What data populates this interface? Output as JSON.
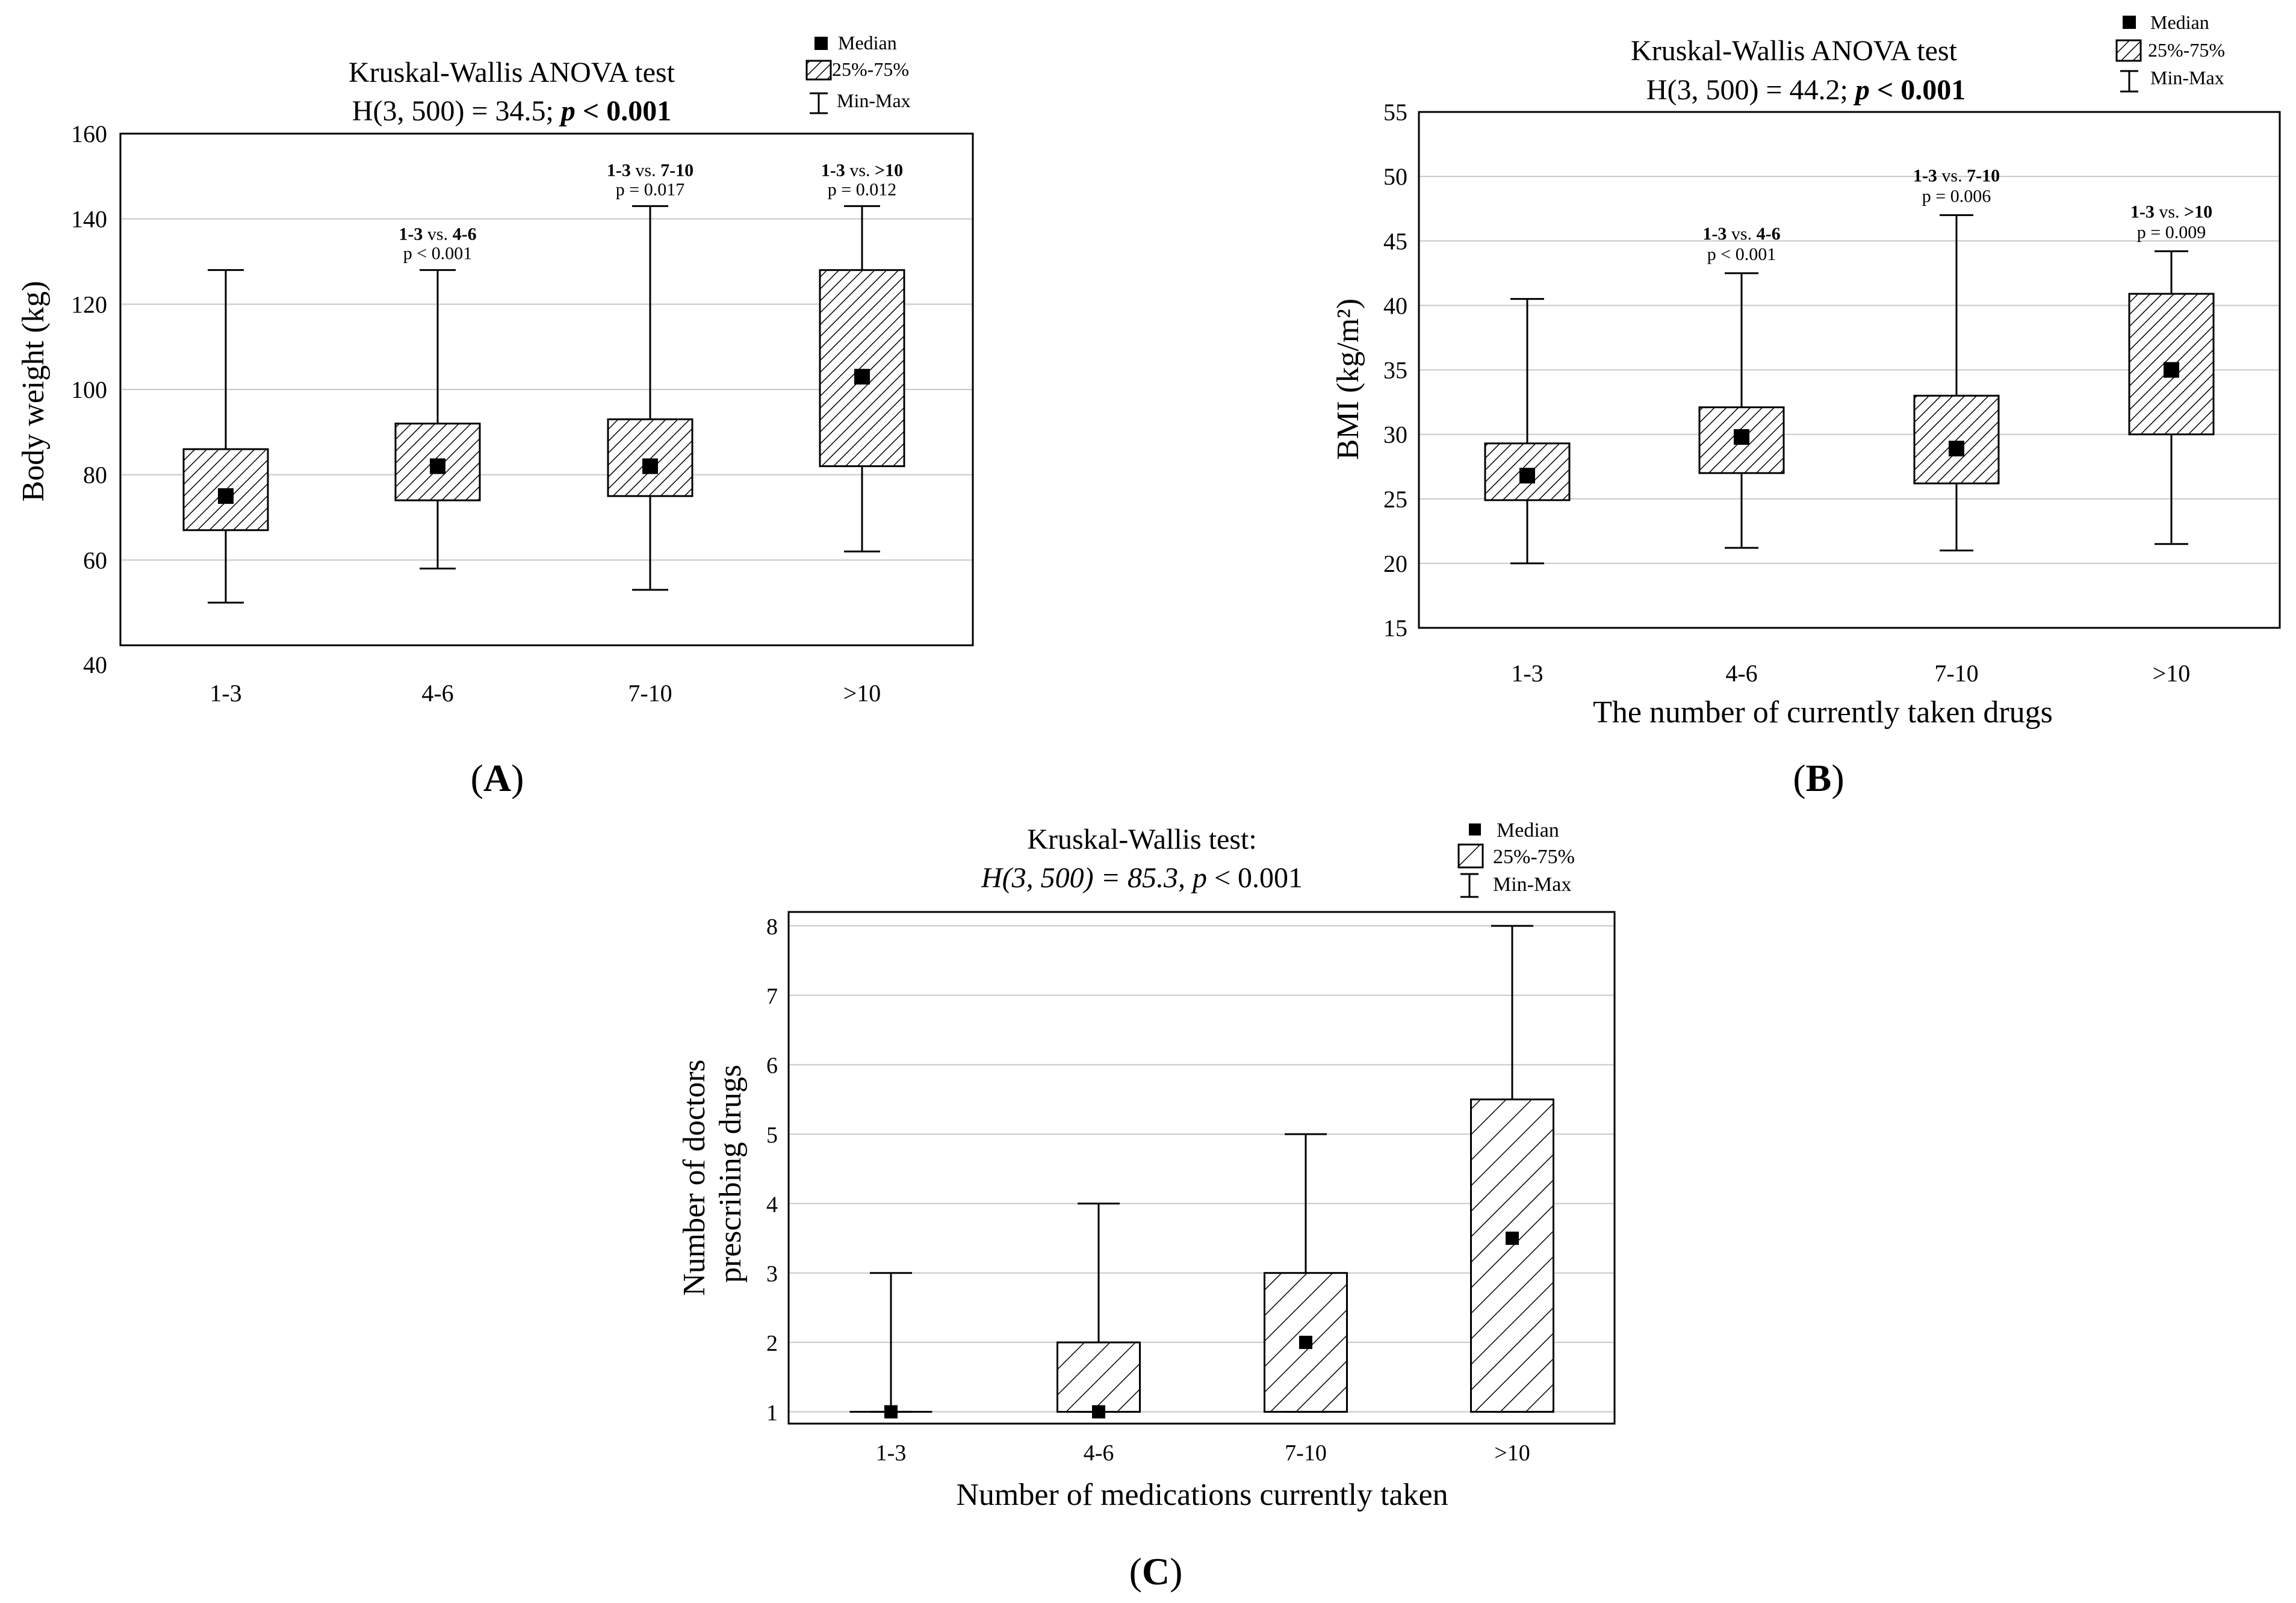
{
  "figure": {
    "panels": [
      {
        "id": "A",
        "panel_label": "(A)",
        "title_line1": "Kruskal-Wallis ANOVA test",
        "title_line2": "H(3, 500) = 34.5;",
        "title_p_label": "p",
        "title_p_value": "< 0.001",
        "legend": {
          "median": "Median",
          "iqr": "25%-75%",
          "range": "Min-Max"
        }
      },
      {
        "id": "B",
        "panel_label": "(B)",
        "title_line1": "Kruskal-Wallis ANOVA test",
        "title_line2": "H(3, 500) = 44.2;",
        "title_p_label": "p",
        "title_p_value": "< 0.001",
        "legend": {
          "median": "Median",
          "iqr": "25%-75%",
          "range": "Min-Max"
        }
      },
      {
        "id": "C",
        "panel_label": "(C)",
        "title_line1": "Kruskal-Wallis test:",
        "title_line2": "H(3, 500) = 85.3,",
        "title_p_label": "p",
        "title_p_value": "< 0.001",
        "legend": {
          "median": "Median",
          "iqr": "25%-75%",
          "range": "Min-Max"
        }
      }
    ]
  },
  "chart_data": [
    {
      "type": "box",
      "panel": "A",
      "categories": [
        "1-3",
        "4-6",
        "7-10",
        ">10"
      ],
      "xlabel": "",
      "ylabel": "Body weight (kg)",
      "ylim": [
        40,
        160
      ],
      "yticks": [
        40,
        60,
        80,
        100,
        120,
        140,
        160
      ],
      "series": [
        {
          "category": "1-3",
          "min": 50,
          "q1": 67,
          "median": 75,
          "q3": 86,
          "max": 128
        },
        {
          "category": "4-6",
          "min": 58,
          "q1": 74,
          "median": 82,
          "q3": 92,
          "max": 128
        },
        {
          "category": "7-10",
          "min": 53,
          "q1": 75,
          "median": 82,
          "q3": 93,
          "max": 143
        },
        {
          "category": ">10",
          "min": 62,
          "q1": 82,
          "median": 103,
          "q3": 128,
          "max": 143
        }
      ],
      "annotations": [
        {
          "category": "4-6",
          "line1_bold_a": "1-3",
          "line1_mid": "vs.",
          "line1_bold_b": "4-6",
          "line2": "p < 0.001"
        },
        {
          "category": "7-10",
          "line1_bold_a": "1-3",
          "line1_mid": "vs.",
          "line1_bold_b": "7-10",
          "line2": "p = 0.017"
        },
        {
          "category": ">10",
          "line1_bold_a": "1-3",
          "line1_mid": "vs.",
          "line1_bold_b": ">10",
          "line2": "p = 0.012"
        }
      ]
    },
    {
      "type": "box",
      "panel": "B",
      "categories": [
        "1-3",
        "4-6",
        "7-10",
        ">10"
      ],
      "xlabel": "The number of currently taken drugs",
      "ylabel": "BMI (kg/m²)",
      "ylim": [
        15,
        55
      ],
      "yticks": [
        15,
        20,
        25,
        30,
        35,
        40,
        45,
        50,
        55
      ],
      "series": [
        {
          "category": "1-3",
          "min": 20.0,
          "q1": 24.9,
          "median": 26.8,
          "q3": 29.3,
          "max": 40.5
        },
        {
          "category": "4-6",
          "min": 21.2,
          "q1": 27.0,
          "median": 29.8,
          "q3": 32.1,
          "max": 42.5
        },
        {
          "category": "7-10",
          "min": 21.0,
          "q1": 26.2,
          "median": 28.9,
          "q3": 33.0,
          "max": 47.0
        },
        {
          "category": ">10",
          "min": 21.5,
          "q1": 30.0,
          "median": 35.0,
          "q3": 40.9,
          "max": 44.2
        }
      ],
      "annotations": [
        {
          "category": "4-6",
          "line1_bold_a": "1-3",
          "line1_mid": "vs.",
          "line1_bold_b": "4-6",
          "line2": "p < 0.001"
        },
        {
          "category": "7-10",
          "line1_bold_a": "1-3",
          "line1_mid": "vs.",
          "line1_bold_b": "7-10",
          "line2": "p = 0.006"
        },
        {
          "category": ">10",
          "line1_bold_a": "1-3",
          "line1_mid": "vs.",
          "line1_bold_b": ">10",
          "line2": "p = 0.009"
        }
      ]
    },
    {
      "type": "box",
      "panel": "C",
      "categories": [
        "1-3",
        "4-6",
        "7-10",
        ">10"
      ],
      "xlabel": "Number of medications currently taken",
      "ylabel_line1": "Number of doctors",
      "ylabel_line2": "prescribing drugs",
      "ylim": [
        0.83,
        8.2
      ],
      "yticks": [
        1,
        2,
        3,
        4,
        5,
        6,
        7,
        8
      ],
      "series": [
        {
          "category": "1-3",
          "min": 1,
          "q1": 1,
          "median": 1,
          "q3": 1,
          "max": 3
        },
        {
          "category": "4-6",
          "min": 1,
          "q1": 1,
          "median": 1,
          "q3": 2,
          "max": 4
        },
        {
          "category": "7-10",
          "min": 1,
          "q1": 1,
          "median": 2,
          "q3": 3,
          "max": 5
        },
        {
          "category": ">10",
          "min": 1,
          "q1": 1,
          "median": 3.5,
          "q3": 5.5,
          "max": 8
        }
      ],
      "annotations": []
    }
  ]
}
